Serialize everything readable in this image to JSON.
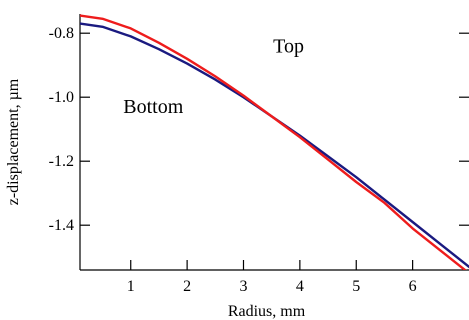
{
  "chart_data": {
    "type": "line",
    "xlabel": "Radius, mm",
    "ylabel": "z-displacement, µm",
    "xlim": [
      0.1,
      7.0
    ],
    "ylim": [
      -1.54,
      -0.74
    ],
    "x_ticks": [
      1,
      2,
      3,
      4,
      5,
      6
    ],
    "y_ticks": [
      -0.8,
      -1.0,
      -1.2,
      -1.4
    ],
    "x_tick_labels": [
      "1",
      "2",
      "3",
      "4",
      "5",
      "6"
    ],
    "y_tick_labels": [
      "-0.8",
      "-1.0",
      "-1.2",
      "-1.4"
    ],
    "grid": false,
    "annotations": [
      {
        "text": "Top",
        "x": 3.8,
        "y": -0.86
      },
      {
        "text": "Bottom",
        "x": 1.4,
        "y": -1.05
      }
    ],
    "series": [
      {
        "color": "#1a1a80",
        "x": [
          0.1,
          0.5,
          1.0,
          1.5,
          2.0,
          2.5,
          3.0,
          3.5,
          4.0,
          4.5,
          5.0,
          5.5,
          6.0,
          6.5,
          7.0
        ],
        "y": [
          -0.77,
          -0.78,
          -0.81,
          -0.85,
          -0.895,
          -0.945,
          -1.0,
          -1.06,
          -1.12,
          -1.185,
          -1.25,
          -1.32,
          -1.39,
          -1.46,
          -1.53
        ]
      },
      {
        "color": "#ee1c1c",
        "x": [
          0.1,
          0.5,
          1.0,
          1.5,
          2.0,
          2.5,
          3.0,
          3.5,
          4.0,
          4.5,
          5.0,
          5.5,
          6.0,
          6.5,
          7.0
        ],
        "y": [
          -0.745,
          -0.755,
          -0.785,
          -0.83,
          -0.88,
          -0.935,
          -0.995,
          -1.06,
          -1.125,
          -1.195,
          -1.265,
          -1.33,
          -1.41,
          -1.48,
          -1.55
        ]
      }
    ]
  }
}
